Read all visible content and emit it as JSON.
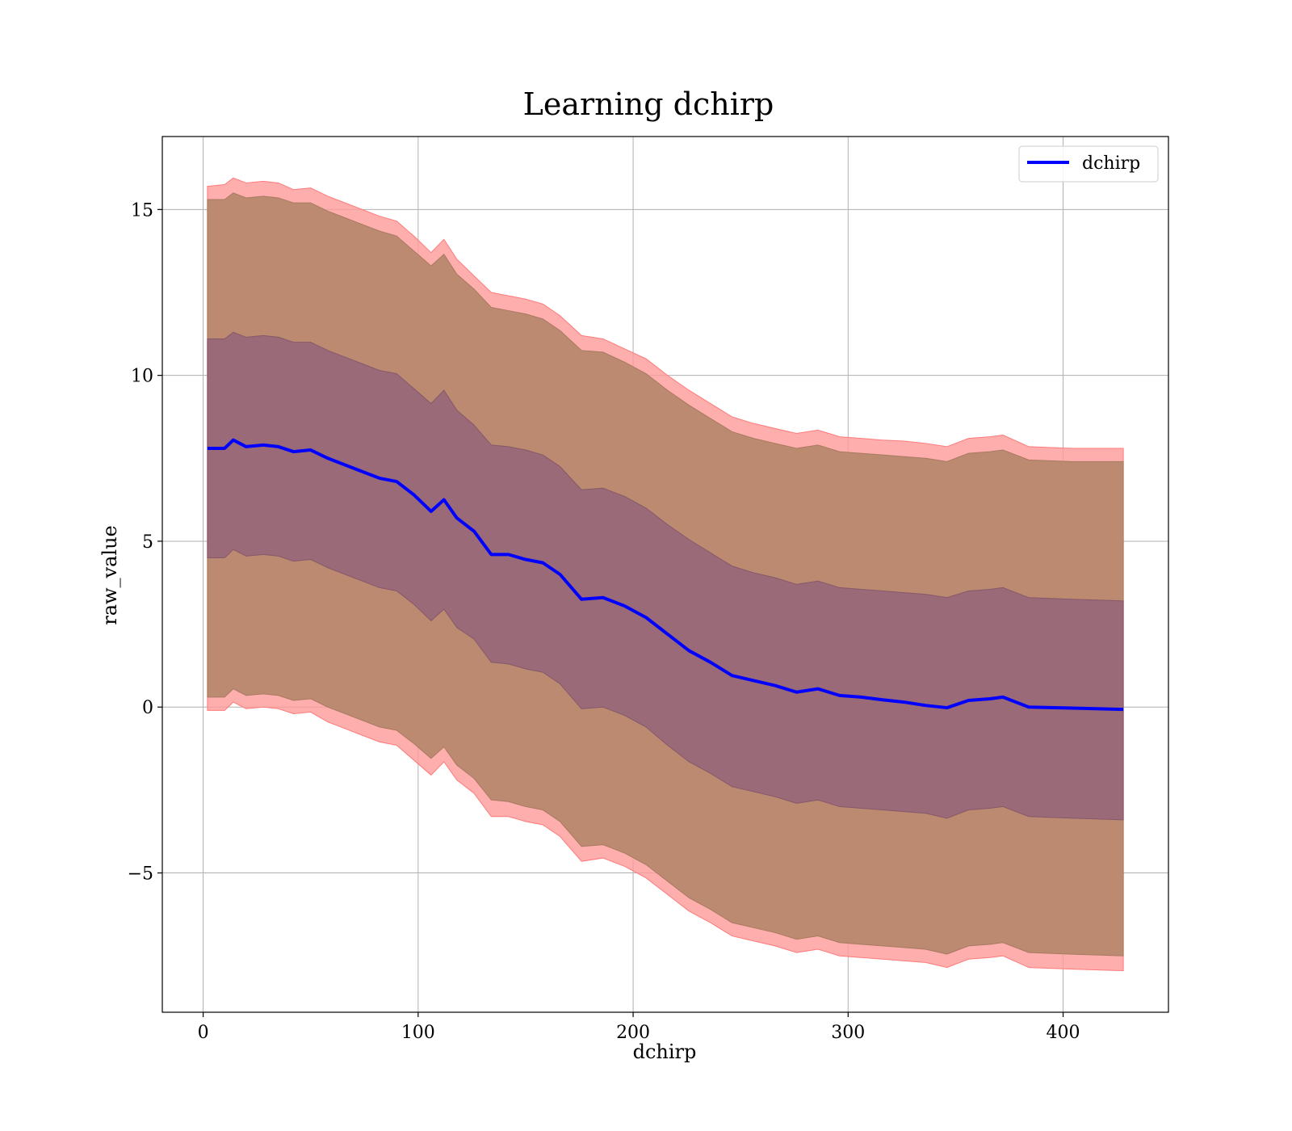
{
  "chart_data": {
    "type": "line",
    "title": "Learning dchirp",
    "xlabel": "dchirp",
    "ylabel": "raw_value",
    "xlim": [
      -19,
      449
    ],
    "ylim": [
      -9.2,
      17.2
    ],
    "xticks": [
      0,
      100,
      200,
      300,
      400
    ],
    "yticks": [
      -5,
      0,
      5,
      10,
      15
    ],
    "xtick_labels": [
      "0",
      "100",
      "200",
      "300",
      "400"
    ],
    "ytick_labels": [
      "−5",
      "0",
      "5",
      "10",
      "15"
    ],
    "grid": true,
    "legend": {
      "placement": "top-right",
      "entries": [
        "dchirp"
      ]
    },
    "colors": {
      "mean": "#0000ff",
      "outer_band": "#ff9a9a",
      "middle_band": "#bc8a70",
      "inner_band": "#9a6a78"
    },
    "x": [
      2,
      10,
      14,
      20,
      28,
      35,
      42,
      50,
      58,
      66,
      74,
      82,
      90,
      98,
      106,
      112,
      118,
      126,
      134,
      142,
      150,
      158,
      166,
      176,
      186,
      196,
      206,
      216,
      226,
      236,
      246,
      256,
      266,
      276,
      286,
      296,
      306,
      316,
      326,
      336,
      346,
      356,
      366,
      372,
      384,
      404,
      428
    ],
    "series": [
      {
        "name": "dchirp",
        "role": "mean",
        "values": [
          7.8,
          7.8,
          8.05,
          7.85,
          7.9,
          7.85,
          7.7,
          7.75,
          7.5,
          7.3,
          7.1,
          6.9,
          6.8,
          6.4,
          5.9,
          6.25,
          5.7,
          5.3,
          4.6,
          4.6,
          4.45,
          4.35,
          4.0,
          3.25,
          3.3,
          3.05,
          2.7,
          2.2,
          1.7,
          1.35,
          0.95,
          0.8,
          0.65,
          0.45,
          0.55,
          0.35,
          0.3,
          0.22,
          0.15,
          0.05,
          -0.02,
          0.2,
          0.25,
          0.3,
          0.0,
          -0.03,
          -0.07
        ]
      },
      {
        "name": "band outer upper",
        "values": [
          15.7,
          15.75,
          15.95,
          15.8,
          15.85,
          15.8,
          15.6,
          15.65,
          15.4,
          15.2,
          15.0,
          14.8,
          14.65,
          14.2,
          13.7,
          14.1,
          13.5,
          13.0,
          12.5,
          12.4,
          12.3,
          12.15,
          11.8,
          11.2,
          11.1,
          10.8,
          10.5,
          10.0,
          9.55,
          9.15,
          8.75,
          8.55,
          8.4,
          8.25,
          8.35,
          8.15,
          8.1,
          8.05,
          8.02,
          7.95,
          7.85,
          8.1,
          8.15,
          8.2,
          7.85,
          7.8,
          7.8
        ]
      },
      {
        "name": "band middle upper",
        "values": [
          15.3,
          15.3,
          15.5,
          15.35,
          15.4,
          15.35,
          15.2,
          15.2,
          14.95,
          14.75,
          14.55,
          14.35,
          14.2,
          13.75,
          13.3,
          13.65,
          13.05,
          12.6,
          12.05,
          11.95,
          11.85,
          11.7,
          11.35,
          10.75,
          10.7,
          10.4,
          10.05,
          9.55,
          9.1,
          8.7,
          8.3,
          8.1,
          7.95,
          7.8,
          7.9,
          7.7,
          7.65,
          7.6,
          7.55,
          7.5,
          7.4,
          7.65,
          7.7,
          7.75,
          7.45,
          7.4,
          7.4
        ]
      },
      {
        "name": "band inner upper",
        "values": [
          11.1,
          11.1,
          11.3,
          11.15,
          11.2,
          11.15,
          11.0,
          11.0,
          10.75,
          10.55,
          10.35,
          10.15,
          10.05,
          9.6,
          9.15,
          9.55,
          8.95,
          8.5,
          7.9,
          7.85,
          7.75,
          7.6,
          7.25,
          6.55,
          6.6,
          6.35,
          6.0,
          5.5,
          5.05,
          4.65,
          4.25,
          4.05,
          3.9,
          3.7,
          3.8,
          3.6,
          3.55,
          3.5,
          3.45,
          3.4,
          3.3,
          3.5,
          3.55,
          3.6,
          3.3,
          3.25,
          3.2
        ]
      },
      {
        "name": "band inner lower",
        "values": [
          4.5,
          4.5,
          4.75,
          4.55,
          4.6,
          4.55,
          4.4,
          4.45,
          4.2,
          4.0,
          3.8,
          3.6,
          3.5,
          3.1,
          2.6,
          2.95,
          2.4,
          2.05,
          1.35,
          1.3,
          1.15,
          1.05,
          0.7,
          -0.05,
          0.0,
          -0.25,
          -0.6,
          -1.15,
          -1.65,
          -2.0,
          -2.4,
          -2.55,
          -2.7,
          -2.9,
          -2.8,
          -3.0,
          -3.05,
          -3.1,
          -3.15,
          -3.2,
          -3.35,
          -3.1,
          -3.05,
          -3.0,
          -3.3,
          -3.35,
          -3.4
        ]
      },
      {
        "name": "band middle lower",
        "values": [
          0.3,
          0.3,
          0.55,
          0.35,
          0.4,
          0.35,
          0.2,
          0.25,
          0.0,
          -0.2,
          -0.4,
          -0.6,
          -0.7,
          -1.1,
          -1.55,
          -1.2,
          -1.75,
          -2.15,
          -2.8,
          -2.85,
          -3.0,
          -3.1,
          -3.45,
          -4.2,
          -4.15,
          -4.4,
          -4.75,
          -5.25,
          -5.75,
          -6.1,
          -6.5,
          -6.65,
          -6.8,
          -7.0,
          -6.9,
          -7.1,
          -7.15,
          -7.2,
          -7.25,
          -7.3,
          -7.45,
          -7.2,
          -7.15,
          -7.1,
          -7.4,
          -7.45,
          -7.5
        ]
      },
      {
        "name": "band outer lower",
        "values": [
          -0.1,
          -0.1,
          0.15,
          -0.05,
          0.0,
          -0.05,
          -0.2,
          -0.15,
          -0.45,
          -0.65,
          -0.85,
          -1.05,
          -1.15,
          -1.6,
          -2.05,
          -1.65,
          -2.2,
          -2.6,
          -3.3,
          -3.3,
          -3.45,
          -3.55,
          -3.9,
          -4.65,
          -4.55,
          -4.8,
          -5.15,
          -5.65,
          -6.15,
          -6.5,
          -6.9,
          -7.05,
          -7.2,
          -7.4,
          -7.3,
          -7.5,
          -7.55,
          -7.6,
          -7.65,
          -7.7,
          -7.85,
          -7.6,
          -7.55,
          -7.5,
          -7.85,
          -7.9,
          -7.95
        ]
      }
    ]
  }
}
